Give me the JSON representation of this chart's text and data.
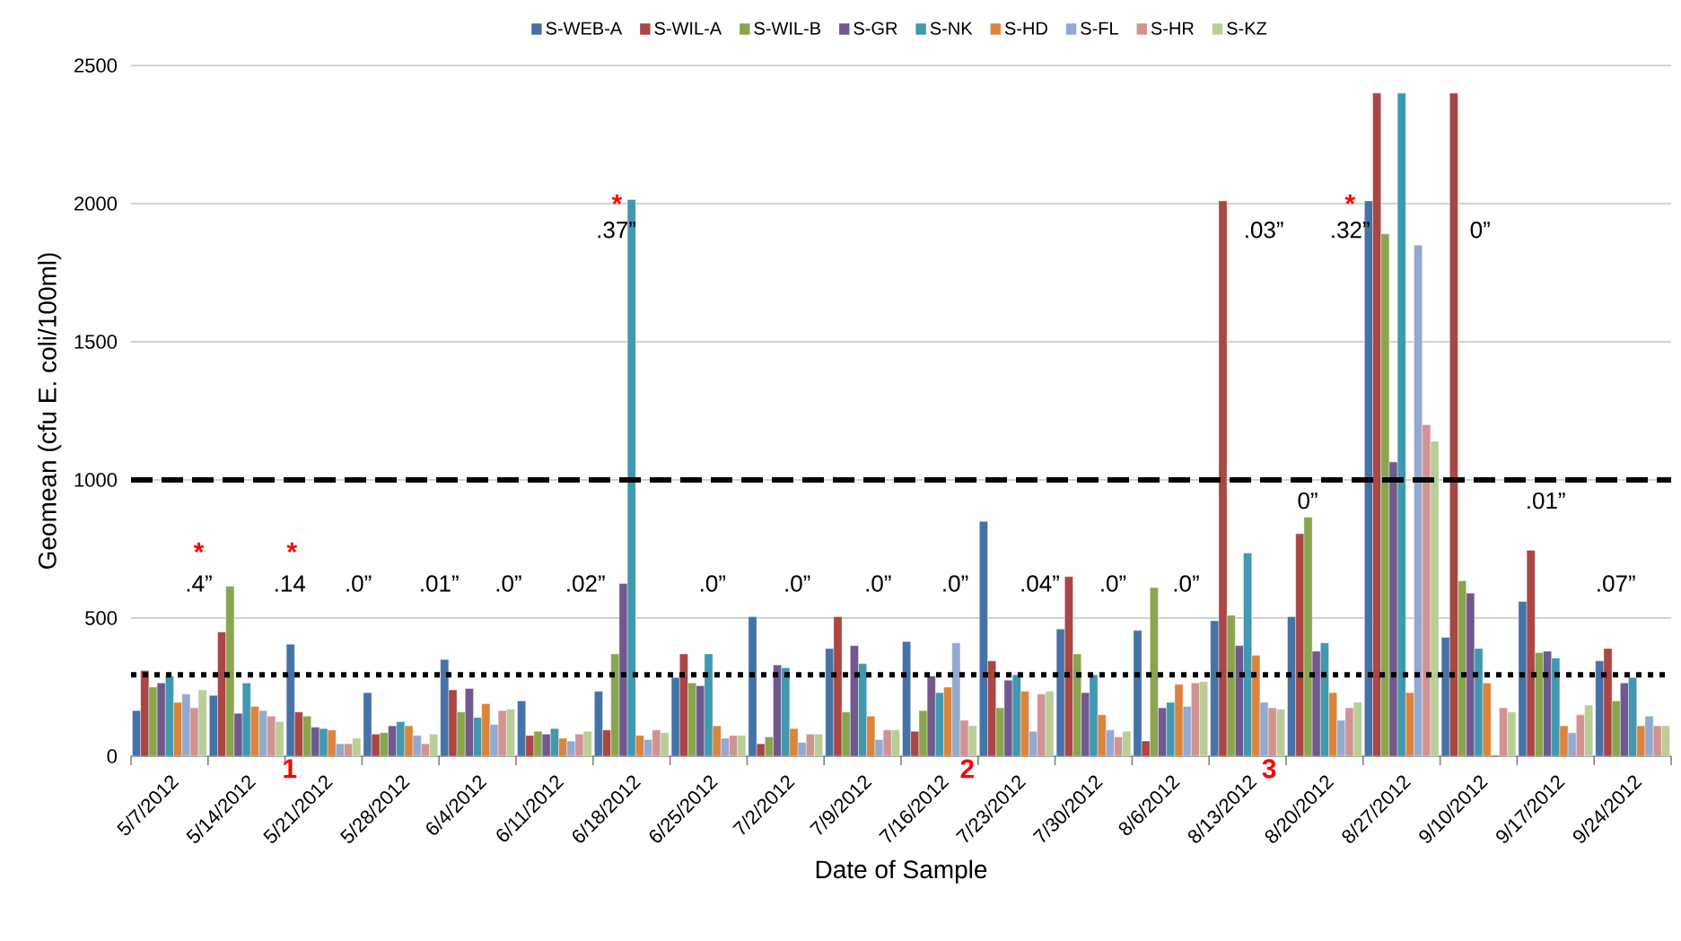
{
  "chart_data": {
    "type": "bar",
    "xlabel": "Date of Sample",
    "ylabel": "Geomean (cfu E. coli/100ml)",
    "categories": [
      "5/7/2012",
      "5/14/2012",
      "5/21/2012",
      "5/28/2012",
      "6/4/2012",
      "6/11/2012",
      "6/18/2012",
      "6/25/2012",
      "7/2/2012",
      "7/9/2012",
      "7/16/2012",
      "7/23/2012",
      "7/30/2012",
      "8/6/2012",
      "8/13/2012",
      "8/20/2012",
      "8/27/2012",
      "9/10/2012",
      "9/17/2012",
      "9/24/2012"
    ],
    "series": [
      {
        "name": "S-WEB-A",
        "color": "#4572a7",
        "values": [
          165,
          220,
          405,
          230,
          350,
          200,
          235,
          285,
          505,
          390,
          415,
          850,
          460,
          455,
          490,
          505,
          2010,
          430,
          560,
          345
        ]
      },
      {
        "name": "S-WIL-A",
        "color": "#aa4643",
        "values": [
          310,
          450,
          160,
          80,
          240,
          75,
          95,
          370,
          45,
          505,
          90,
          345,
          650,
          55,
          2010,
          805,
          2400,
          2400,
          745,
          390
        ]
      },
      {
        "name": "S-WIL-B",
        "color": "#89a54e",
        "values": [
          250,
          615,
          145,
          85,
          160,
          90,
          370,
          265,
          70,
          160,
          165,
          175,
          370,
          610,
          510,
          865,
          1890,
          635,
          375,
          200
        ]
      },
      {
        "name": "S-GR",
        "color": "#71588f",
        "values": [
          265,
          155,
          105,
          110,
          245,
          80,
          625,
          255,
          330,
          400,
          290,
          275,
          230,
          175,
          400,
          380,
          1065,
          590,
          380,
          265
        ]
      },
      {
        "name": "S-NK",
        "color": "#4198af",
        "values": [
          290,
          265,
          100,
          125,
          140,
          100,
          2015,
          370,
          320,
          335,
          230,
          295,
          295,
          195,
          735,
          410,
          2400,
          390,
          355,
          285
        ]
      },
      {
        "name": "S-HD",
        "color": "#db843d",
        "values": [
          195,
          180,
          95,
          110,
          190,
          65,
          75,
          110,
          100,
          145,
          250,
          235,
          150,
          260,
          365,
          230,
          230,
          265,
          110,
          110
        ]
      },
      {
        "name": "S-FL",
        "color": "#93a9cf",
        "values": [
          225,
          165,
          45,
          75,
          115,
          55,
          60,
          65,
          50,
          60,
          410,
          90,
          95,
          180,
          195,
          130,
          1850,
          null,
          85,
          145
        ]
      },
      {
        "name": "S-HR",
        "color": "#d19392",
        "values": [
          175,
          145,
          45,
          45,
          165,
          80,
          95,
          75,
          80,
          95,
          130,
          225,
          70,
          265,
          175,
          175,
          1200,
          175,
          150,
          110
        ]
      },
      {
        "name": "S-KZ",
        "color": "#b9cd96",
        "values": [
          240,
          125,
          65,
          80,
          170,
          90,
          85,
          75,
          80,
          95,
          110,
          235,
          90,
          270,
          170,
          195,
          1140,
          160,
          185,
          110
        ]
      }
    ],
    "ylim": [
      0,
      2500
    ],
    "yticks": [
      0,
      500,
      1000,
      1500,
      2000,
      2500
    ],
    "grid": "y",
    "legend": "top",
    "ref_lines": [
      {
        "axis": "y",
        "value": 1000,
        "color": "#000000",
        "line_style": "dashed"
      },
      {
        "axis": "y",
        "value": 295,
        "color": "#000000",
        "line_style": "dotted"
      }
    ],
    "annotations": [
      "*",
      ".4”",
      "*",
      ".14",
      "1",
      ".0”",
      ".01”",
      ".0”",
      ".02”",
      "*",
      ".37”",
      ".0”",
      ".0”",
      ".0”",
      ".0”",
      "2",
      ".04”",
      ".0”",
      ".0”",
      ".03”",
      "3",
      "0”",
      "*",
      ".32”",
      "0”",
      ".01”",
      ".07”"
    ]
  }
}
